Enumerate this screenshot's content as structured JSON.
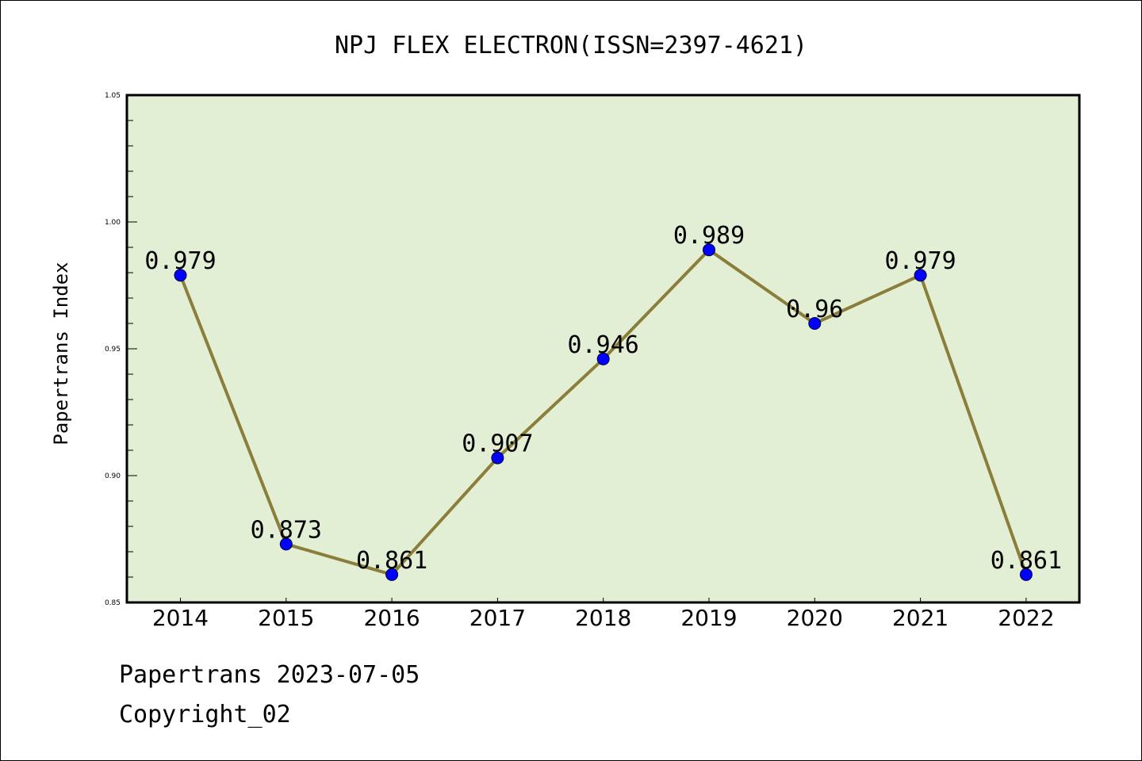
{
  "chart_data": {
    "type": "line",
    "title": "NPJ FLEX ELECTRON(ISSN=2397-4621)",
    "xlabel": "",
    "ylabel": "Papertrans Index",
    "categories": [
      "2014",
      "2015",
      "2016",
      "2017",
      "2018",
      "2019",
      "2020",
      "2021",
      "2022"
    ],
    "series": [
      {
        "values": [
          0.979,
          0.873,
          0.861,
          0.907,
          0.946,
          0.989,
          0.96,
          0.979,
          0.861
        ],
        "labels": [
          "0.979",
          "0.873",
          "0.861",
          "0.907",
          "0.946",
          "0.989",
          "0.96",
          "0.979",
          "0.861"
        ]
      }
    ],
    "ylim": [
      0.85,
      1.05
    ],
    "yticks": [
      0.85,
      0.9,
      0.95,
      1.0,
      1.05
    ],
    "ytick_labels": [
      "0.85",
      "0.90",
      "0.95",
      "1.00",
      "1.05"
    ],
    "y_minor_step": 0.01,
    "grid": false,
    "colors": {
      "plot_background": "#e2efd5",
      "line": "#8b7d3a",
      "marker": "#0000ff",
      "axes": "#000000"
    }
  },
  "footer": {
    "date_text": "Papertrans 2023-07-05",
    "copyright_text": "Copyright_02"
  }
}
